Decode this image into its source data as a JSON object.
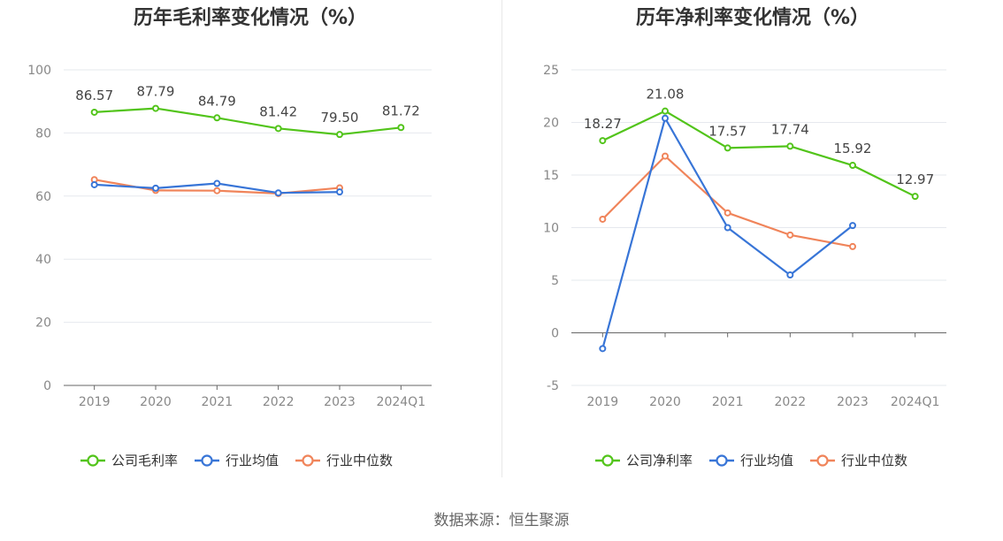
{
  "chart_data": [
    {
      "type": "line",
      "title": "历年毛利率变化情况（%）",
      "categories": [
        "2019",
        "2020",
        "2021",
        "2022",
        "2023",
        "2024Q1"
      ],
      "ylim": [
        0,
        100
      ],
      "yticks": [
        0,
        20,
        40,
        60,
        80,
        100
      ],
      "grid": true,
      "legend_position": "bottom",
      "series": [
        {
          "name": "公司毛利率",
          "color": "#52c41a",
          "values": [
            86.57,
            87.79,
            84.79,
            81.42,
            79.5,
            81.72
          ],
          "labels": [
            "86.57",
            "87.79",
            "84.79",
            "81.42",
            "79.50",
            "81.72"
          ]
        },
        {
          "name": "行业均值",
          "color": "#3875d7",
          "values": [
            63.6,
            62.5,
            64.0,
            61.0,
            61.3,
            null
          ]
        },
        {
          "name": "行业中位数",
          "color": "#f0845a",
          "values": [
            65.2,
            61.8,
            61.7,
            60.8,
            62.6,
            null
          ]
        }
      ]
    },
    {
      "type": "line",
      "title": "历年净利率变化情况（%）",
      "categories": [
        "2019",
        "2020",
        "2021",
        "2022",
        "2023",
        "2024Q1"
      ],
      "ylim": [
        -5,
        25
      ],
      "yticks": [
        -5,
        0,
        5,
        10,
        15,
        20,
        25
      ],
      "grid": true,
      "legend_position": "bottom",
      "series": [
        {
          "name": "公司净利率",
          "color": "#52c41a",
          "values": [
            18.27,
            21.08,
            17.57,
            17.74,
            15.92,
            12.97
          ],
          "labels": [
            "18.27",
            "21.08",
            "17.57",
            "17.74",
            "15.92",
            "12.97"
          ]
        },
        {
          "name": "行业均值",
          "color": "#3875d7",
          "values": [
            -1.5,
            20.4,
            10.0,
            5.5,
            10.2,
            null
          ]
        },
        {
          "name": "行业中位数",
          "color": "#f0845a",
          "values": [
            10.8,
            16.8,
            11.4,
            9.3,
            8.2,
            null
          ]
        }
      ]
    }
  ],
  "source": "数据来源：恒生聚源"
}
